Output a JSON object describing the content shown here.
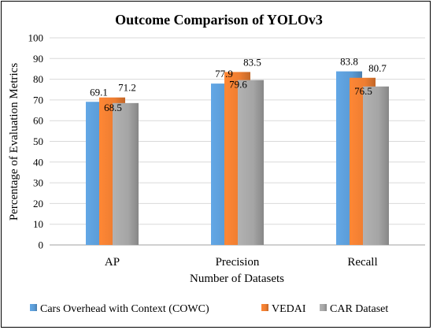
{
  "chart_data": {
    "type": "bar",
    "title": "Outcome Comparison of YOLOv3",
    "xlabel": "Number of Datasets",
    "ylabel": "Percentage of Evaluation Metrics",
    "ylim": [
      0,
      100
    ],
    "ytick_step": 10,
    "grid": true,
    "legend_position": "bottom",
    "categories": [
      "AP",
      "Precision",
      "Recall"
    ],
    "series": [
      {
        "name": "Cars Overhead with Context (COWC)",
        "color": "#5B9BD5",
        "values": [
          69.1,
          77.9,
          83.8
        ]
      },
      {
        "name": "VEDAI",
        "color": "#ED7D31",
        "values": [
          71.2,
          83.5,
          80.7
        ]
      },
      {
        "name": "CAR Dataset",
        "color": "#A5A5A5",
        "values": [
          68.5,
          79.6,
          76.5
        ]
      }
    ]
  }
}
